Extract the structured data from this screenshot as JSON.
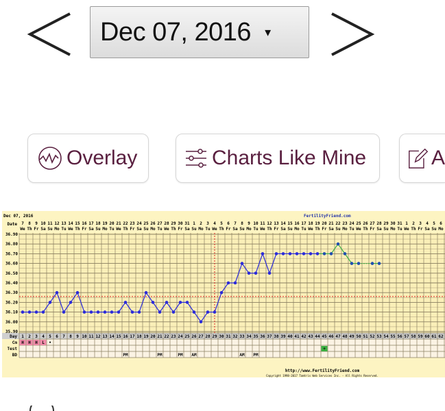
{
  "header": {
    "selected_date": "Dec 07, 2016",
    "caret": "▾",
    "prev_icon": "chevron-left-icon",
    "next_icon": "chevron-right-icon"
  },
  "actions": [
    {
      "label": "Overlay",
      "icon": "overlay-chart-icon"
    },
    {
      "label": "Charts Like Mine",
      "icon": "sliders-icon"
    },
    {
      "label": "A",
      "icon": "edit-icon"
    }
  ],
  "colors": {
    "accent": "#5a2040",
    "temp_line": "#2b2bd9",
    "post_line": "#3cb043",
    "coverline": "#e02020",
    "chart_bg": "#fdf4c2",
    "pink": "#f08aa8",
    "test_positive": "#3cb043"
  },
  "chart_data": {
    "type": "line",
    "title": "Dec 07, 2016",
    "brand": "FertilityFriend.com",
    "footer_url": "http://www.FertilityFriend.com",
    "copyright": "Copyright 1998-2017 Tamtris Web Services Inc. - All Rights Reserved.",
    "row_labels": {
      "date": "Date",
      "day": "Day",
      "cm": "Cm",
      "test": "Test",
      "bd": "BD"
    },
    "ylim": [
      35.9,
      36.9
    ],
    "y_ticks": [
      "36.90",
      "36.80",
      "36.70",
      "36.60",
      "36.50",
      "36.40",
      "36.30",
      "36.20",
      "36.10",
      "36.00",
      "35.90"
    ],
    "dates": [
      "7",
      "8",
      "9",
      "10",
      "11",
      "12",
      "13",
      "14",
      "15",
      "16",
      "17",
      "18",
      "19",
      "20",
      "21",
      "22",
      "23",
      "24",
      "25",
      "26",
      "27",
      "28",
      "29",
      "30",
      "31",
      "1",
      "2",
      "3",
      "4",
      "5",
      "6",
      "7",
      "8",
      "9",
      "10",
      "11",
      "12",
      "13",
      "14",
      "15",
      "16",
      "17",
      "18",
      "19",
      "20",
      "21",
      "22",
      "23",
      "24",
      "25",
      "26",
      "27",
      "28",
      "29",
      "30",
      "31",
      "1",
      "2",
      "3",
      "4",
      "5",
      "6"
    ],
    "weekdays": [
      "We",
      "Th",
      "Fr",
      "Sa",
      "Su",
      "Mo",
      "Tu",
      "We",
      "Th",
      "Fr",
      "Sa",
      "Su",
      "Mo",
      "Tu",
      "We",
      "Th",
      "Fr",
      "Sa",
      "Su",
      "Mo",
      "Tu",
      "We",
      "Th",
      "Fr",
      "Sa",
      "Su",
      "Mo",
      "Tu",
      "We",
      "Th",
      "Fr",
      "Sa",
      "Su",
      "Mo",
      "Tu",
      "We",
      "Th",
      "Fr",
      "Sa",
      "Su",
      "Mo",
      "Tu",
      "We",
      "Th",
      "Fr",
      "Sa",
      "Su",
      "Mo",
      "Tu",
      "We",
      "Th",
      "Fr",
      "Sa",
      "Su",
      "Mo",
      "Tu",
      "We",
      "Th",
      "Fr",
      "Sa",
      "Su",
      "Mo"
    ],
    "days": [
      1,
      2,
      3,
      4,
      5,
      6,
      7,
      8,
      9,
      10,
      11,
      12,
      13,
      14,
      15,
      16,
      17,
      18,
      19,
      20,
      21,
      22,
      23,
      24,
      25,
      26,
      27,
      28,
      29,
      30,
      31,
      32,
      33,
      34,
      35,
      36,
      37,
      38,
      39,
      40,
      41,
      42,
      43,
      44,
      45,
      46,
      47,
      48,
      49,
      50,
      51,
      52,
      53,
      54,
      55,
      56,
      57,
      58,
      59,
      60,
      61,
      62
    ],
    "temperatures": [
      36.1,
      36.1,
      36.1,
      36.1,
      36.2,
      36.3,
      36.1,
      36.2,
      36.3,
      36.1,
      36.1,
      36.1,
      36.1,
      36.1,
      36.1,
      36.2,
      36.1,
      36.1,
      36.3,
      36.2,
      36.1,
      36.2,
      36.1,
      36.2,
      36.2,
      36.1,
      36.0,
      36.1,
      36.1,
      36.3,
      36.4,
      36.4,
      36.6,
      36.5,
      36.5,
      36.7,
      36.5,
      36.7,
      36.7,
      36.7,
      36.7,
      36.7,
      36.7,
      36.7,
      36.7,
      36.7,
      36.8,
      36.7,
      36.6,
      36.6,
      null,
      36.6,
      36.6
    ],
    "green_from_day": 44,
    "coverline": 36.26,
    "ovulation_day": 29,
    "cm": [
      {
        "day": 1,
        "value": "H"
      },
      {
        "day": 2,
        "value": "H"
      },
      {
        "day": 3,
        "value": "H"
      },
      {
        "day": 4,
        "value": "L"
      },
      {
        "day": 5,
        "value": "•"
      }
    ],
    "test": [
      {
        "day": 45,
        "value": "+"
      }
    ],
    "bd": [
      {
        "day": 16,
        "value": "PM"
      },
      {
        "day": 21,
        "value": "PM"
      },
      {
        "day": 24,
        "value": "PM"
      },
      {
        "day": 26,
        "value": "AM"
      },
      {
        "day": 33,
        "value": "AM"
      },
      {
        "day": 35,
        "value": "PM"
      }
    ]
  }
}
